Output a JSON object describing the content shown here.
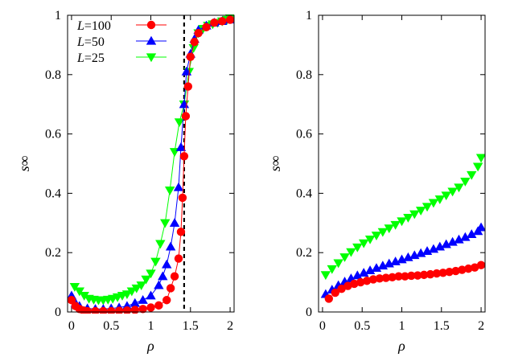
{
  "chart_data": [
    {
      "type": "line",
      "xlabel": "ρ",
      "ylabel": "s∞",
      "xlim": [
        -0.05,
        2.05
      ],
      "ylim": [
        0,
        1
      ],
      "xticks": [
        0,
        0.5,
        1,
        1.5,
        2
      ],
      "xtick_labels": [
        "0",
        "0.5",
        "1",
        "1.5",
        "2"
      ],
      "yticks": [
        0,
        0.2,
        0.4,
        0.6,
        0.8,
        1
      ],
      "ytick_labels": [
        "0",
        "0.2",
        "0.4",
        "0.6",
        "0.8",
        "1"
      ],
      "grid": false,
      "legend_position": "top-left",
      "vline": {
        "x": 1.42,
        "style": "dashed",
        "color": "#000000"
      },
      "series": [
        {
          "name": "L=100",
          "name_italic": "L",
          "name_rest": "=100",
          "color": "#ff0000",
          "marker": "circle",
          "x": [
            0,
            0.05,
            0.1,
            0.15,
            0.2,
            0.3,
            0.4,
            0.5,
            0.6,
            0.7,
            0.8,
            0.9,
            1.0,
            1.1,
            1.2,
            1.25,
            1.3,
            1.35,
            1.38,
            1.4,
            1.42,
            1.44,
            1.47,
            1.5,
            1.55,
            1.6,
            1.7,
            1.8,
            1.9,
            2.0
          ],
          "y": [
            0.04,
            0.02,
            0.01,
            0.005,
            0.003,
            0.003,
            0.003,
            0.003,
            0.004,
            0.005,
            0.007,
            0.01,
            0.015,
            0.022,
            0.04,
            0.08,
            0.12,
            0.18,
            0.27,
            0.385,
            0.525,
            0.66,
            0.76,
            0.86,
            0.91,
            0.94,
            0.96,
            0.975,
            0.98,
            0.985
          ]
        },
        {
          "name": "L=50",
          "name_italic": "L",
          "name_rest": "=50",
          "color": "#0000ff",
          "marker": "triangle-up",
          "x": [
            0,
            0.05,
            0.1,
            0.2,
            0.3,
            0.4,
            0.5,
            0.6,
            0.7,
            0.8,
            0.9,
            1.0,
            1.1,
            1.15,
            1.2,
            1.25,
            1.3,
            1.35,
            1.38,
            1.42,
            1.45,
            1.5,
            1.55,
            1.6,
            1.7,
            1.8,
            1.9,
            2.0
          ],
          "y": [
            0.055,
            0.03,
            0.02,
            0.012,
            0.01,
            0.01,
            0.012,
            0.015,
            0.02,
            0.03,
            0.04,
            0.055,
            0.09,
            0.12,
            0.16,
            0.22,
            0.3,
            0.42,
            0.555,
            0.7,
            0.81,
            0.87,
            0.92,
            0.95,
            0.965,
            0.975,
            0.98,
            0.985
          ]
        },
        {
          "name": "L=25",
          "name_italic": "L",
          "name_rest": "=25",
          "color": "#00ff00",
          "marker": "triangle-down",
          "x": [
            0.04,
            0.1,
            0.16,
            0.22,
            0.28,
            0.34,
            0.4,
            0.46,
            0.52,
            0.58,
            0.64,
            0.7,
            0.76,
            0.82,
            0.88,
            0.94,
            1.0,
            1.06,
            1.12,
            1.18,
            1.24,
            1.3,
            1.36,
            1.42,
            1.48,
            1.54,
            1.6,
            1.66,
            1.72,
            1.78,
            1.84,
            1.9,
            1.96,
            2.0
          ],
          "y": [
            0.085,
            0.07,
            0.055,
            0.045,
            0.042,
            0.04,
            0.04,
            0.042,
            0.045,
            0.05,
            0.055,
            0.06,
            0.07,
            0.08,
            0.09,
            0.11,
            0.13,
            0.17,
            0.23,
            0.3,
            0.41,
            0.54,
            0.64,
            0.7,
            0.81,
            0.89,
            0.94,
            0.955,
            0.965,
            0.97,
            0.975,
            0.98,
            0.985,
            0.99
          ]
        }
      ]
    },
    {
      "type": "scatter",
      "xlabel": "ρ",
      "ylabel": "s∞",
      "xlim": [
        -0.05,
        2.05
      ],
      "ylim": [
        0,
        1
      ],
      "xticks": [
        0,
        0.5,
        1,
        1.5,
        2
      ],
      "xtick_labels": [
        "0",
        "0.5",
        "1",
        "1.5",
        "2"
      ],
      "yticks": [
        0,
        0.2,
        0.4,
        0.6,
        0.8,
        1
      ],
      "ytick_labels": [
        "0",
        "0.2",
        "0.4",
        "0.6",
        "0.8",
        "1"
      ],
      "grid": false,
      "series": [
        {
          "name": "L=100",
          "color": "#ff0000",
          "marker": "circle",
          "x": [
            0.08,
            0.16,
            0.24,
            0.32,
            0.4,
            0.48,
            0.56,
            0.64,
            0.72,
            0.8,
            0.88,
            0.96,
            1.04,
            1.12,
            1.2,
            1.28,
            1.36,
            1.44,
            1.52,
            1.6,
            1.68,
            1.76,
            1.84,
            1.92,
            2.0
          ],
          "y": [
            0.045,
            0.065,
            0.078,
            0.088,
            0.095,
            0.1,
            0.105,
            0.11,
            0.113,
            0.115,
            0.117,
            0.12,
            0.12,
            0.122,
            0.123,
            0.125,
            0.127,
            0.13,
            0.132,
            0.135,
            0.138,
            0.142,
            0.146,
            0.15,
            0.158
          ]
        },
        {
          "name": "L=50",
          "color": "#0000ff",
          "marker": "triangle-up",
          "x": [
            0.04,
            0.12,
            0.2,
            0.28,
            0.36,
            0.44,
            0.52,
            0.6,
            0.68,
            0.76,
            0.84,
            0.92,
            1.0,
            1.08,
            1.16,
            1.24,
            1.32,
            1.4,
            1.48,
            1.56,
            1.64,
            1.72,
            1.8,
            1.88,
            1.96,
            2.0
          ],
          "y": [
            0.06,
            0.075,
            0.09,
            0.102,
            0.113,
            0.123,
            0.132,
            0.14,
            0.148,
            0.156,
            0.163,
            0.17,
            0.177,
            0.184,
            0.191,
            0.198,
            0.205,
            0.212,
            0.22,
            0.228,
            0.236,
            0.244,
            0.252,
            0.262,
            0.272,
            0.285
          ]
        },
        {
          "name": "L=25",
          "color": "#00ff00",
          "marker": "triangle-down",
          "x": [
            0.04,
            0.12,
            0.2,
            0.28,
            0.36,
            0.44,
            0.52,
            0.6,
            0.68,
            0.76,
            0.84,
            0.92,
            1.0,
            1.08,
            1.16,
            1.24,
            1.32,
            1.4,
            1.48,
            1.56,
            1.64,
            1.72,
            1.8,
            1.88,
            1.96,
            2.0
          ],
          "y": [
            0.125,
            0.145,
            0.165,
            0.185,
            0.202,
            0.218,
            0.232,
            0.245,
            0.258,
            0.27,
            0.282,
            0.294,
            0.306,
            0.318,
            0.33,
            0.342,
            0.355,
            0.368,
            0.38,
            0.393,
            0.406,
            0.42,
            0.44,
            0.462,
            0.49,
            0.52
          ]
        }
      ]
    }
  ]
}
